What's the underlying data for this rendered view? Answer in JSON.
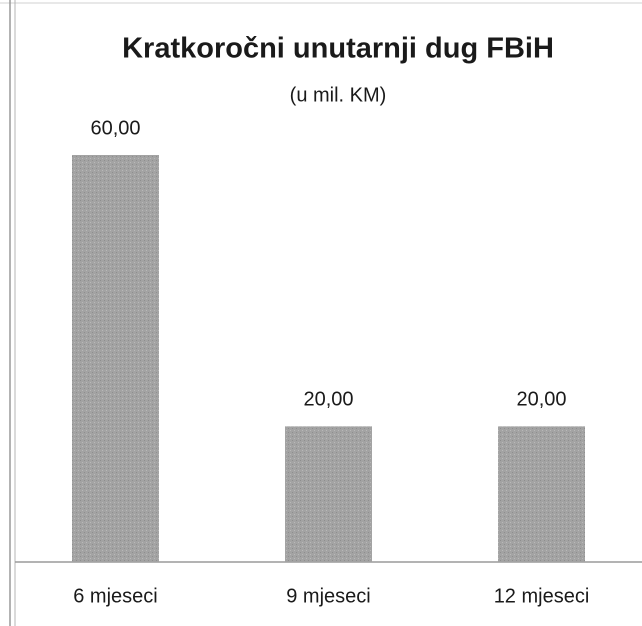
{
  "chart_data": {
    "type": "bar",
    "title": "Kratkoročni unutarnji dug FBiH",
    "subtitle": "(u mil. KM)",
    "categories": [
      "6 mjeseci",
      "9 mjeseci",
      "12 mjeseci"
    ],
    "values": [
      60,
      20,
      20
    ],
    "value_labels": [
      "60,00",
      "20,00",
      "20,00"
    ],
    "color": "#a3a3a3"
  }
}
